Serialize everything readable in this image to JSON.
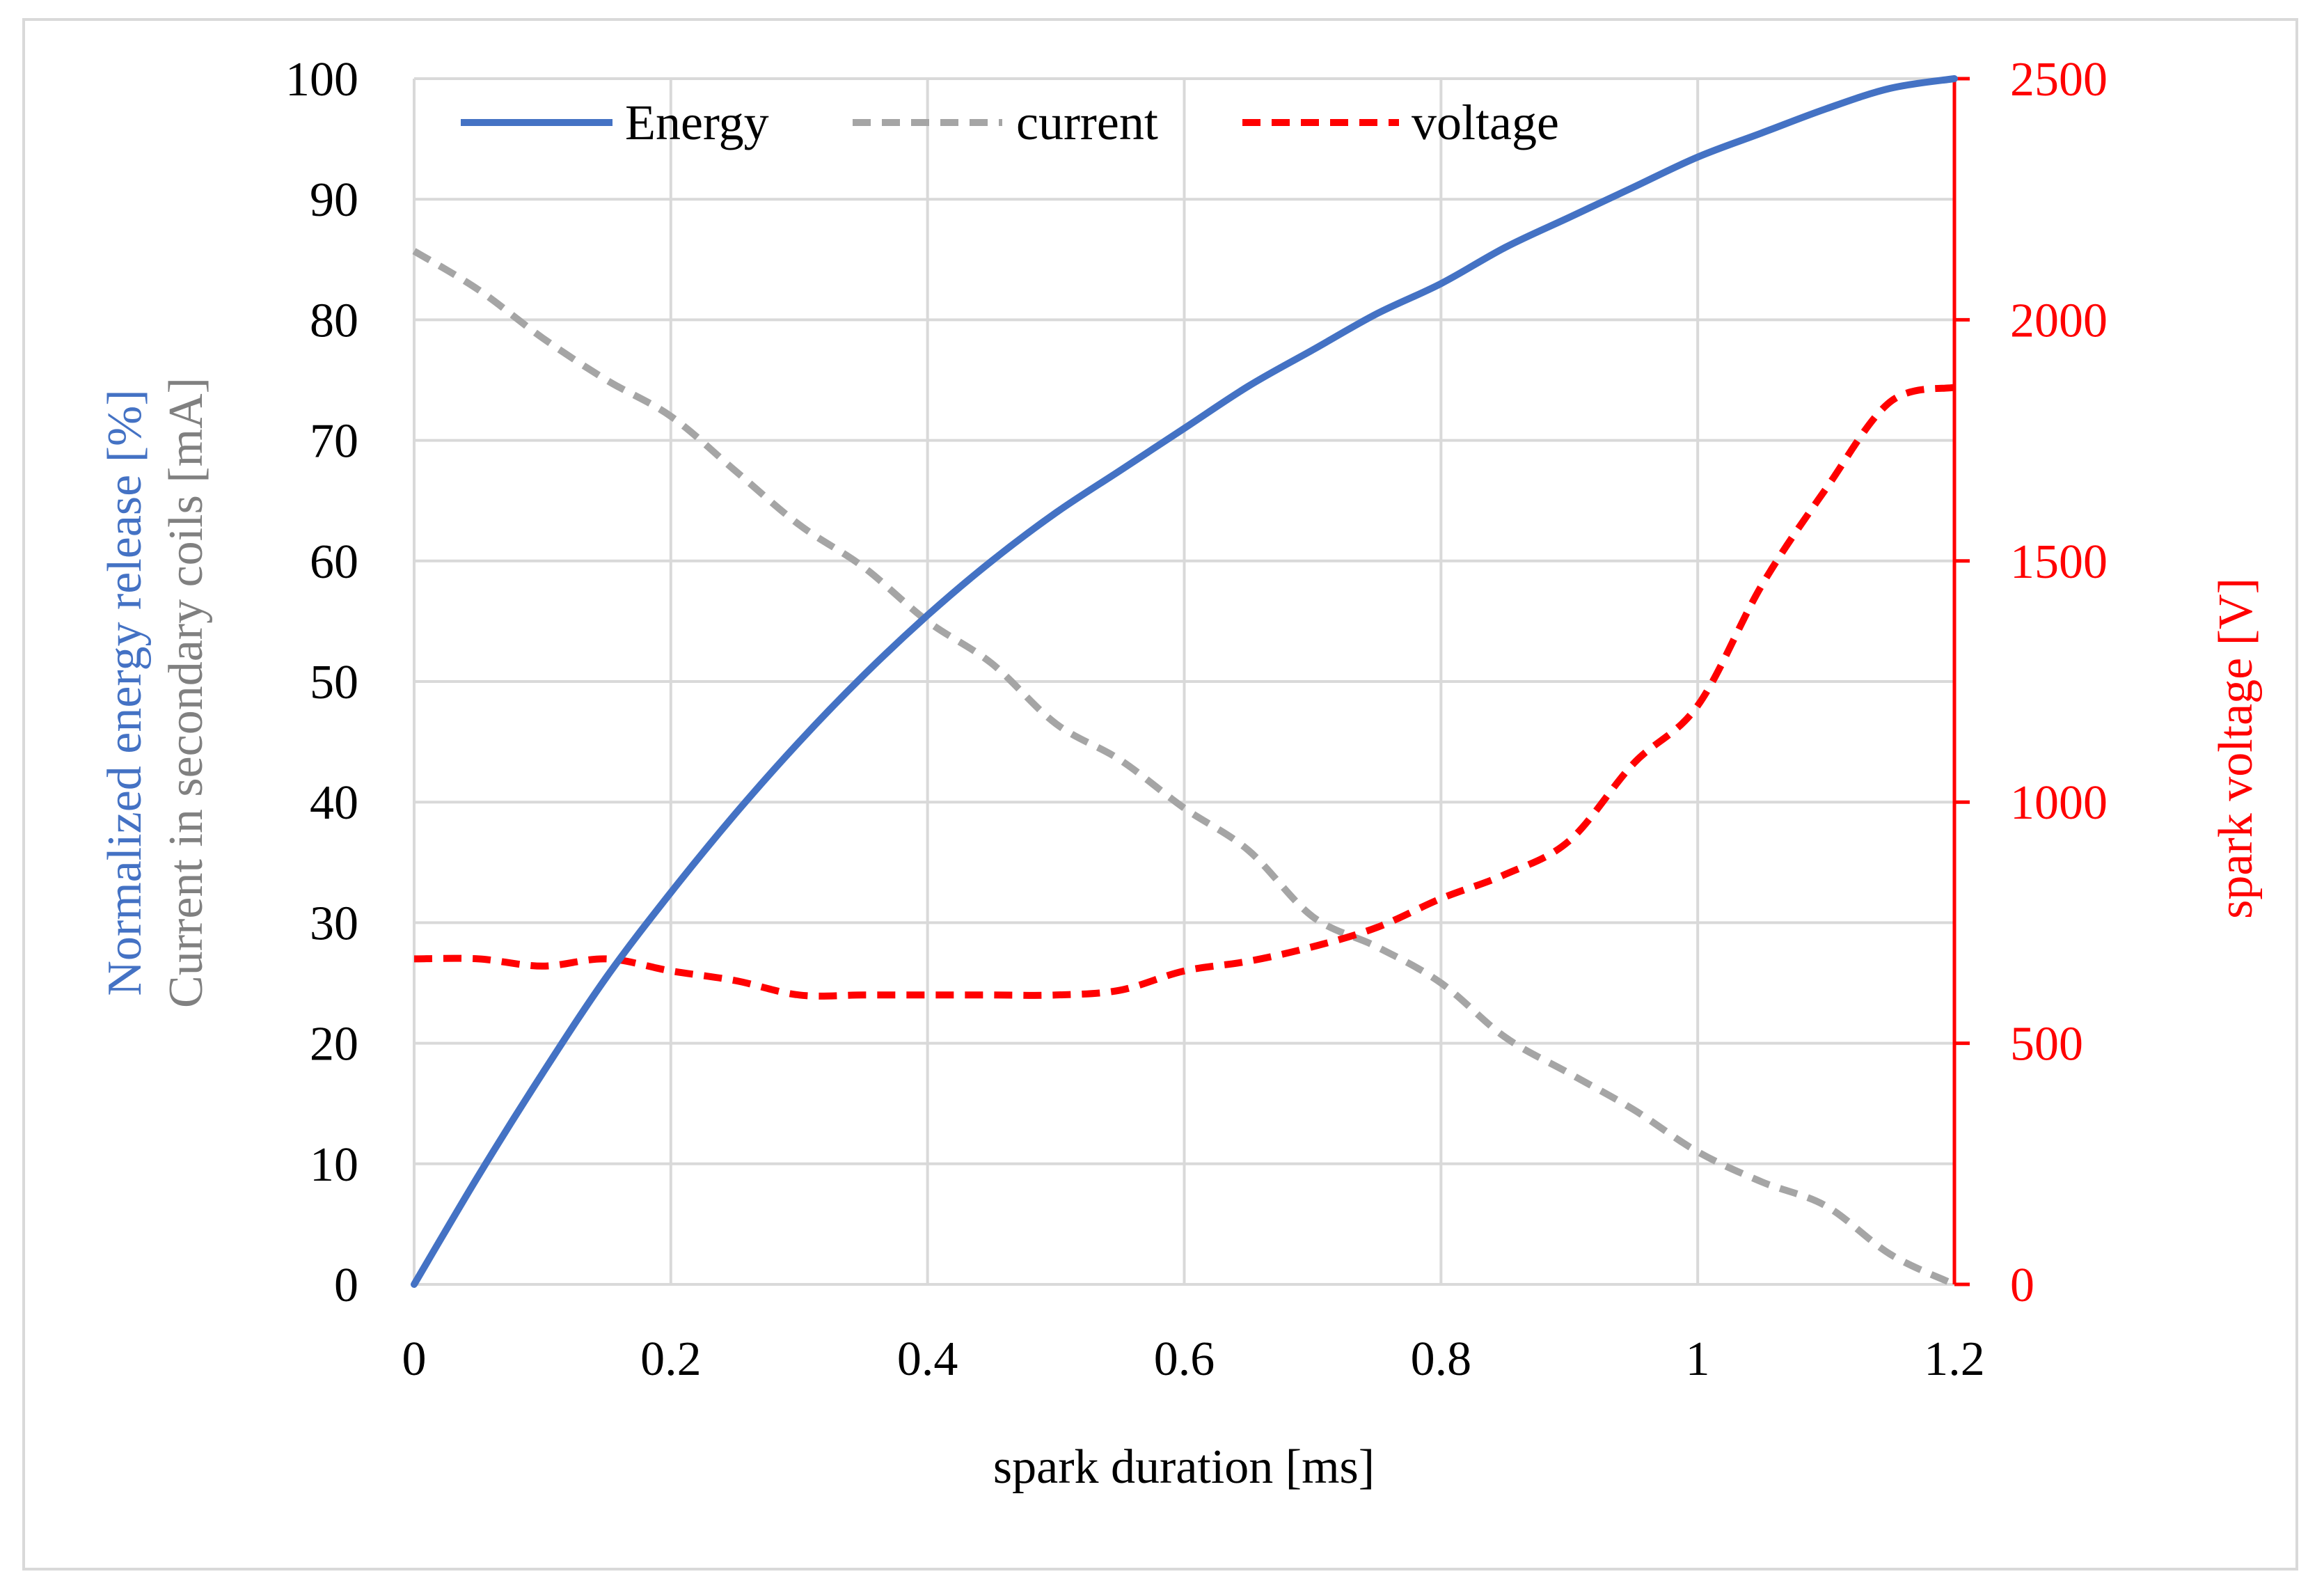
{
  "chart_data": {
    "type": "line",
    "title": "",
    "xlabel": "spark duration [ms]",
    "ylabel_left": [
      "Normalized energy release [%]",
      "Current in secondary coils [mA]"
    ],
    "ylabel_right": "spark voltage [V]",
    "xlim": [
      0,
      1.2
    ],
    "ylim_left": [
      0,
      100
    ],
    "ylim_right": [
      0,
      2500
    ],
    "x_ticks": [
      "0",
      "0.2",
      "0.4",
      "0.6",
      "0.8",
      "1",
      "1.2"
    ],
    "y_left_ticks": [
      "0",
      "10",
      "20",
      "30",
      "40",
      "50",
      "60",
      "70",
      "80",
      "90",
      "100"
    ],
    "y_right_ticks": [
      "0",
      "500",
      "1000",
      "1500",
      "2000",
      "2500"
    ],
    "grid": true,
    "legend_position": "top",
    "colors": {
      "energy": "#4472c4",
      "current": "#a5a5a5",
      "voltage": "#ff0000",
      "grid": "#d9d9d9",
      "axis_text": "#000000"
    },
    "series": [
      {
        "name": "Energy",
        "axis": "left",
        "style": "solid",
        "x": [
          0,
          0.05,
          0.1,
          0.15,
          0.2,
          0.25,
          0.3,
          0.35,
          0.4,
          0.45,
          0.5,
          0.55,
          0.6,
          0.65,
          0.7,
          0.75,
          0.8,
          0.85,
          0.9,
          0.95,
          1.0,
          1.05,
          1.1,
          1.15,
          1.2
        ],
        "values": [
          0,
          9,
          17.5,
          25.5,
          32.5,
          39,
          45,
          50.5,
          55.5,
          60,
          64,
          67.5,
          71,
          74.5,
          77.5,
          80.5,
          83,
          86,
          88.5,
          91,
          93.5,
          95.5,
          97.5,
          99.2,
          100
        ]
      },
      {
        "name": "current",
        "axis": "left",
        "style": "dashed",
        "x": [
          0,
          0.05,
          0.1,
          0.15,
          0.2,
          0.25,
          0.3,
          0.35,
          0.4,
          0.45,
          0.5,
          0.55,
          0.6,
          0.65,
          0.7,
          0.75,
          0.8,
          0.85,
          0.9,
          0.95,
          1.0,
          1.05,
          1.1,
          1.15,
          1.2
        ],
        "values": [
          85.7,
          82.5,
          78.5,
          75,
          72,
          67.5,
          63,
          59.5,
          55,
          51.5,
          46.5,
          43.5,
          39.5,
          36,
          30.5,
          28,
          25,
          20.5,
          17.5,
          14.5,
          11,
          8.5,
          6.5,
          2.5,
          0
        ]
      },
      {
        "name": "voltage",
        "axis": "right",
        "style": "dashed",
        "x": [
          0,
          0.05,
          0.1,
          0.15,
          0.2,
          0.25,
          0.3,
          0.35,
          0.4,
          0.45,
          0.5,
          0.55,
          0.6,
          0.65,
          0.7,
          0.75,
          0.8,
          0.85,
          0.9,
          0.95,
          1.0,
          1.05,
          1.1,
          1.15,
          1.2
        ],
        "values": [
          675,
          675,
          660,
          675,
          650,
          630,
          600,
          600,
          600,
          600,
          600,
          610,
          650,
          670,
          700,
          740,
          800,
          850,
          920,
          1080,
          1200,
          1450,
          1650,
          1830,
          1860
        ]
      }
    ]
  }
}
